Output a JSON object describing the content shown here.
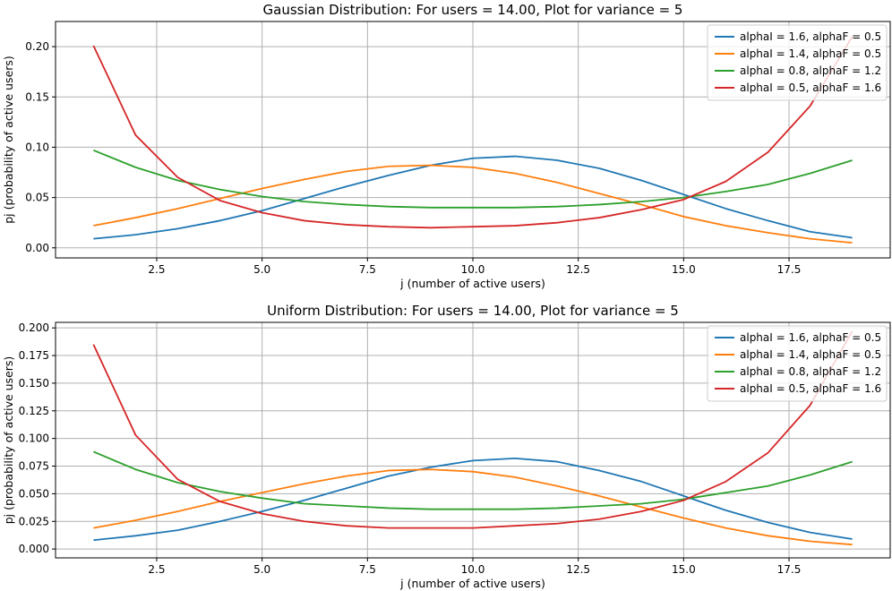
{
  "chart_data": [
    {
      "type": "line",
      "title": "Gaussian Distribution: For users = 14.00, Plot for variance = 5",
      "xlabel": "j (number of active users)",
      "ylabel": "pj (probability of active users)",
      "xlim": [
        0.1,
        19.9
      ],
      "ylim": [
        -0.01,
        0.225
      ],
      "x_ticks": [
        2.5,
        5.0,
        7.5,
        10.0,
        12.5,
        15.0,
        17.5
      ],
      "x_tick_labels": [
        "2.5",
        "5.0",
        "7.5",
        "10.0",
        "12.5",
        "15.0",
        "17.5"
      ],
      "y_ticks": [
        0.0,
        0.05,
        0.1,
        0.15,
        0.2
      ],
      "y_tick_labels": [
        "0.00",
        "0.05",
        "0.10",
        "0.15",
        "0.20"
      ],
      "grid": true,
      "legend_position": "top-right",
      "x": [
        1,
        2,
        3,
        4,
        5,
        6,
        7,
        8,
        9,
        10,
        11,
        12,
        13,
        14,
        15,
        16,
        17,
        18,
        19
      ],
      "series": [
        {
          "name": "alphaI = 1.6, alphaF = 0.5",
          "color": "#1f77b4",
          "values": [
            0.009,
            0.013,
            0.019,
            0.027,
            0.037,
            0.049,
            0.061,
            0.072,
            0.082,
            0.089,
            0.091,
            0.087,
            0.079,
            0.067,
            0.053,
            0.039,
            0.027,
            0.016,
            0.01
          ]
        },
        {
          "name": "alphaI = 1.4, alphaF = 0.5",
          "color": "#ff7f0e",
          "values": [
            0.022,
            0.03,
            0.039,
            0.049,
            0.059,
            0.068,
            0.076,
            0.081,
            0.082,
            0.08,
            0.074,
            0.065,
            0.054,
            0.043,
            0.031,
            0.022,
            0.015,
            0.009,
            0.005
          ]
        },
        {
          "name": "alphaI = 0.8, alphaF = 1.2",
          "color": "#2ca02c",
          "values": [
            0.097,
            0.08,
            0.067,
            0.058,
            0.051,
            0.046,
            0.043,
            0.041,
            0.04,
            0.04,
            0.04,
            0.041,
            0.043,
            0.046,
            0.05,
            0.056,
            0.063,
            0.074,
            0.087
          ]
        },
        {
          "name": "alphaI = 0.5, alphaF = 1.6",
          "color": "#d62728",
          "values": [
            0.201,
            0.112,
            0.07,
            0.047,
            0.035,
            0.027,
            0.023,
            0.021,
            0.02,
            0.021,
            0.022,
            0.025,
            0.03,
            0.038,
            0.048,
            0.066,
            0.095,
            0.141,
            0.21
          ]
        }
      ]
    },
    {
      "type": "line",
      "title": "Uniform Distribution: For users = 14.00, Plot for variance = 5",
      "xlabel": "j (number of active users)",
      "ylabel": "pj (probability of active users)",
      "xlim": [
        0.1,
        19.9
      ],
      "ylim": [
        -0.008,
        0.205
      ],
      "x_ticks": [
        2.5,
        5.0,
        7.5,
        10.0,
        12.5,
        15.0,
        17.5
      ],
      "x_tick_labels": [
        "2.5",
        "5.0",
        "7.5",
        "10.0",
        "12.5",
        "15.0",
        "17.5"
      ],
      "y_ticks": [
        0.0,
        0.025,
        0.05,
        0.075,
        0.1,
        0.125,
        0.15,
        0.175,
        0.2
      ],
      "y_tick_labels": [
        "0.000",
        "0.025",
        "0.050",
        "0.075",
        "0.100",
        "0.125",
        "0.150",
        "0.175",
        "0.200"
      ],
      "grid": true,
      "legend_position": "top-right",
      "x": [
        1,
        2,
        3,
        4,
        5,
        6,
        7,
        8,
        9,
        10,
        11,
        12,
        13,
        14,
        15,
        16,
        17,
        18,
        19
      ],
      "series": [
        {
          "name": "alphaI = 1.6, alphaF = 0.5",
          "color": "#1f77b4",
          "values": [
            0.008,
            0.012,
            0.017,
            0.025,
            0.034,
            0.044,
            0.055,
            0.066,
            0.074,
            0.08,
            0.082,
            0.079,
            0.071,
            0.061,
            0.048,
            0.035,
            0.024,
            0.015,
            0.009
          ]
        },
        {
          "name": "alphaI = 1.4, alphaF = 0.5",
          "color": "#ff7f0e",
          "values": [
            0.019,
            0.026,
            0.034,
            0.043,
            0.051,
            0.059,
            0.066,
            0.071,
            0.072,
            0.07,
            0.065,
            0.057,
            0.048,
            0.038,
            0.028,
            0.019,
            0.012,
            0.007,
            0.004
          ]
        },
        {
          "name": "alphaI = 0.8, alphaF = 1.2",
          "color": "#2ca02c",
          "values": [
            0.088,
            0.072,
            0.06,
            0.052,
            0.046,
            0.041,
            0.039,
            0.037,
            0.036,
            0.036,
            0.036,
            0.037,
            0.039,
            0.041,
            0.045,
            0.051,
            0.057,
            0.067,
            0.079
          ]
        },
        {
          "name": "alphaI = 0.5, alphaF = 1.6",
          "color": "#d62728",
          "values": [
            0.185,
            0.103,
            0.063,
            0.043,
            0.032,
            0.025,
            0.021,
            0.019,
            0.019,
            0.019,
            0.021,
            0.023,
            0.027,
            0.034,
            0.044,
            0.061,
            0.087,
            0.13,
            0.197
          ]
        }
      ]
    }
  ]
}
